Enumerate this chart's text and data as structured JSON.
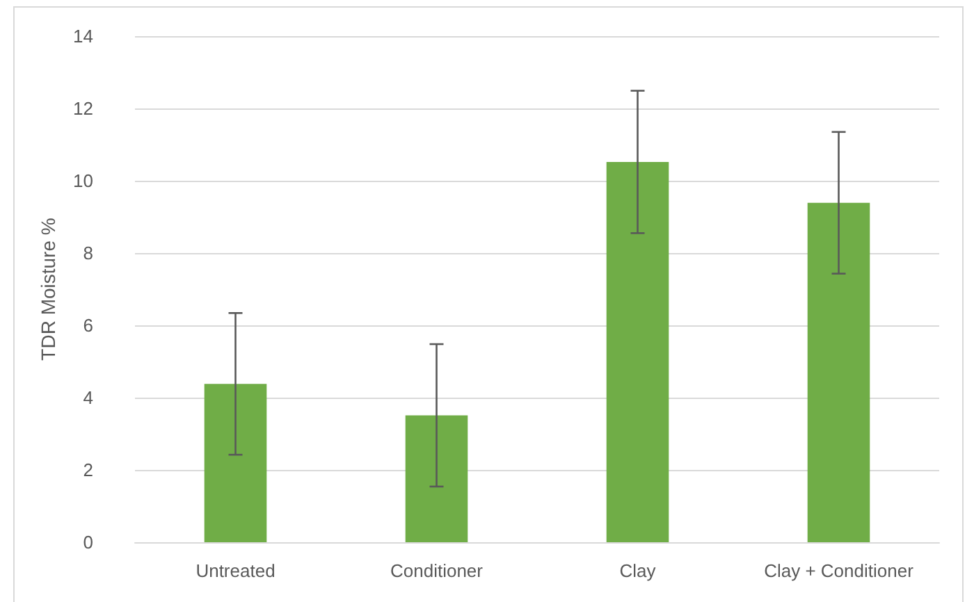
{
  "chart_data": {
    "type": "bar",
    "ylabel": "TDR Moisture %",
    "categories": [
      "Untreated",
      "Conditioner",
      "Clay",
      "Clay + Conditioner"
    ],
    "values": [
      4.38,
      3.51,
      10.52,
      9.39
    ],
    "errors": [
      1.96,
      1.97,
      1.97,
      1.96
    ],
    "color": "#70ad47",
    "ylim": [
      0,
      14
    ],
    "yticks": [
      0,
      2,
      4,
      6,
      8,
      10,
      12,
      14
    ],
    "grid": "y"
  }
}
